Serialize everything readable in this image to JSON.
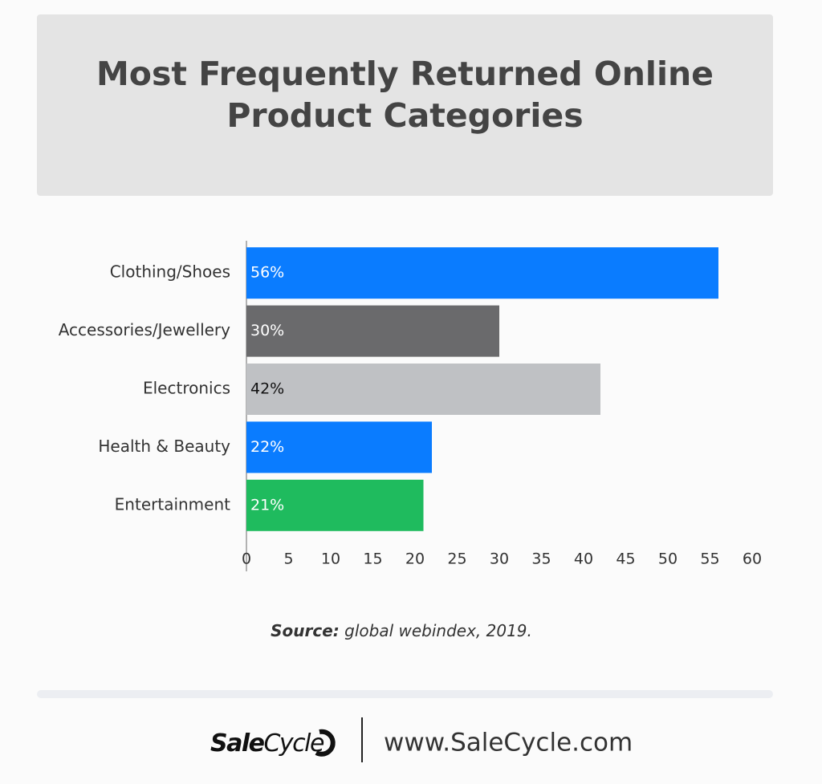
{
  "chart_data": {
    "type": "bar",
    "orientation": "horizontal",
    "title": "Most Frequently Returned Online Product Categories",
    "categories": [
      "Clothing/Shoes",
      "Accessories/Jewellery",
      "Electronics",
      "Health & Beauty",
      "Entertainment"
    ],
    "values": [
      56,
      30,
      42,
      22,
      21
    ],
    "value_labels": [
      "56%",
      "30%",
      "42%",
      "22%",
      "21%"
    ],
    "colors": [
      "#0a7cff",
      "#6a6a6c",
      "#bfc1c4",
      "#0a7cff",
      "#1fbb5e"
    ],
    "xlim": [
      0,
      60
    ],
    "xticks": [
      0,
      5,
      10,
      15,
      20,
      25,
      30,
      35,
      40,
      45,
      50,
      55,
      60
    ],
    "grid": false,
    "source": {
      "label": "Source:",
      "text": "global webindex, 2019."
    }
  },
  "footer": {
    "brand": {
      "bold": "Sale",
      "light": "Cycle"
    },
    "url": "www.SaleCycle.com"
  }
}
